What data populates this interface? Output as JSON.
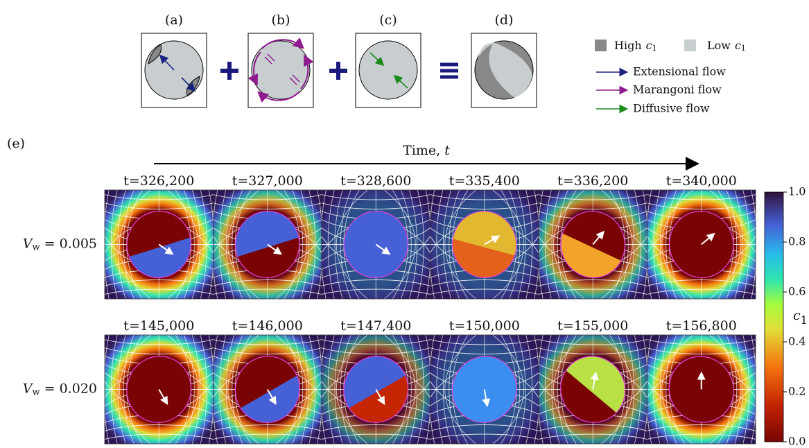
{
  "panels": [
    {
      "label": "(a)"
    },
    {
      "label": "(b)"
    },
    {
      "label": "(c)"
    },
    {
      "label": "(d)"
    }
  ],
  "legend": {
    "concentration": [
      {
        "text": "High",
        "var": "c",
        "sub": "1"
      },
      {
        "text": "Low",
        "var": "c",
        "sub": "1"
      }
    ],
    "flows": [
      "Extensional flow",
      "Marangoni flow",
      "Diffusive flow"
    ]
  },
  "simulation": {
    "label": "(e)",
    "time_axis": {
      "text": "Time,",
      "var": "t"
    },
    "rows": [
      {
        "var": "V",
        "sub": "w",
        "text": "= 0.005",
        "times": [
          "t=326,200",
          "t=327,000",
          "t=328,600",
          "t=335,400",
          "t=336,200",
          "t=340,000"
        ]
      },
      {
        "var": "V",
        "sub": "w",
        "text": "= 0.020",
        "times": [
          "t=145,000",
          "t=146,000",
          "t=147,400",
          "t=150,000",
          "t=155,000",
          "t=156,800"
        ]
      }
    ]
  },
  "colorbar": {
    "label": {
      "var": "c",
      "sub": "1"
    },
    "ticks": [
      {
        "value": 1,
        "label": "1.0"
      },
      {
        "value": 0.8,
        "label": "0.8"
      },
      {
        "value": 0.6,
        "label": "0.6"
      },
      {
        "value": 0.4,
        "label": "0.4"
      },
      {
        "value": 0.2,
        "label": "0.2"
      },
      {
        "value": 0,
        "label": "0.0"
      }
    ],
    "lim": [
      0,
      1
    ]
  }
}
